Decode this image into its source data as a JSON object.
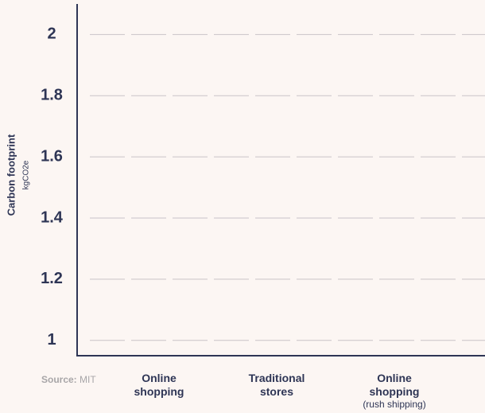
{
  "source_label": "Source:",
  "source": "MIT",
  "chart_data": {
    "type": "bar",
    "y_label": "Carbon footprint",
    "y_unit": "kgCO2e",
    "categories": [
      "Online shopping",
      "Traditional stores",
      "Online shopping"
    ],
    "category_notes": [
      null,
      null,
      "(rush shipping)"
    ],
    "ylim": [
      0.95,
      2.1
    ],
    "yticks": [
      1,
      1.2,
      1.4,
      1.6,
      1.8,
      2
    ],
    "grid": true
  }
}
